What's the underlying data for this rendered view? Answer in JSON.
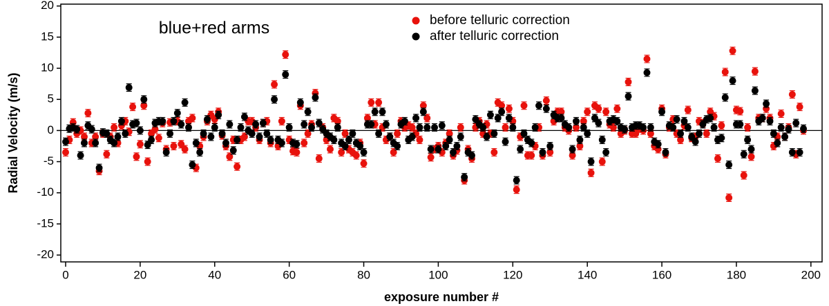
{
  "chart_data": {
    "type": "scatter",
    "annotation": "blue+red arms",
    "xlabel": "exposure number #",
    "ylabel": "Radial Velocity (m/s)",
    "xlim": [
      -1.3,
      203
    ],
    "ylim": [
      -21.1,
      20.3
    ],
    "xticks": [
      0,
      20,
      40,
      60,
      80,
      100,
      120,
      140,
      160,
      180,
      200
    ],
    "yticks": [
      -20,
      -15,
      -10,
      -5,
      0,
      5,
      10,
      15,
      20
    ],
    "hline": 0,
    "x": [
      0,
      1,
      2,
      3,
      4,
      5,
      6,
      7,
      8,
      9,
      10,
      11,
      12,
      13,
      14,
      15,
      16,
      17,
      18,
      19,
      20,
      21,
      22,
      23,
      24,
      25,
      26,
      27,
      28,
      29,
      30,
      31,
      32,
      33,
      34,
      35,
      36,
      37,
      38,
      39,
      40,
      41,
      42,
      43,
      44,
      45,
      46,
      47,
      48,
      49,
      50,
      51,
      52,
      53,
      54,
      55,
      56,
      57,
      58,
      59,
      60,
      61,
      62,
      63,
      64,
      65,
      66,
      67,
      68,
      69,
      70,
      71,
      72,
      73,
      74,
      75,
      76,
      77,
      78,
      79,
      80,
      81,
      82,
      83,
      84,
      85,
      86,
      87,
      88,
      89,
      90,
      91,
      92,
      93,
      94,
      95,
      96,
      97,
      98,
      99,
      100,
      101,
      102,
      103,
      104,
      105,
      106,
      107,
      108,
      109,
      110,
      111,
      112,
      113,
      114,
      115,
      116,
      117,
      118,
      119,
      120,
      121,
      122,
      123,
      124,
      125,
      126,
      127,
      128,
      129,
      130,
      131,
      132,
      133,
      134,
      135,
      136,
      137,
      138,
      139,
      140,
      141,
      142,
      143,
      144,
      145,
      146,
      147,
      148,
      149,
      150,
      151,
      152,
      153,
      154,
      155,
      156,
      157,
      158,
      159,
      160,
      161,
      162,
      163,
      164,
      165,
      166,
      167,
      168,
      169,
      170,
      171,
      172,
      173,
      174,
      175,
      176,
      177,
      178,
      179,
      180,
      181,
      182,
      183,
      184,
      185,
      186,
      187,
      188,
      189,
      190,
      191,
      192,
      193,
      194,
      195,
      196,
      197,
      198
    ],
    "series": [
      {
        "name": "before telluric correction",
        "color": "#e8120c",
        "error": 0.6,
        "values": [
          -3.5,
          -1.5,
          1.3,
          -0.5,
          0,
          -1,
          2.8,
          -2,
          -1,
          -6.5,
          -0.5,
          -3.8,
          -1,
          0.5,
          -2,
          0.8,
          1.5,
          -0.2,
          3.8,
          -4.2,
          -2.2,
          4,
          -5,
          -0.5,
          0.2,
          -1.2,
          1.2,
          -3,
          1.3,
          -2.5,
          1.5,
          -2.2,
          -3,
          1.5,
          2,
          -6,
          -2.5,
          -1,
          1.5,
          2.5,
          1.8,
          3,
          -0.8,
          -2.5,
          -4.2,
          -1.5,
          -5.8,
          -1.5,
          -1,
          1.5,
          1.5,
          0.5,
          -1.5,
          1.2,
          1.5,
          -2,
          7.4,
          -2.5,
          1.5,
          12.2,
          -1.5,
          -3.3,
          -3.5,
          4,
          -2,
          -0.5,
          1,
          6,
          -4.5,
          0.5,
          -1.5,
          -3,
          2,
          1.5,
          -3.5,
          -0.5,
          -3,
          -3.5,
          -4,
          -2,
          -5.3,
          2,
          4.5,
          1,
          4.5,
          0.5,
          -1.5,
          -1,
          -3.5,
          -0.5,
          1.5,
          0.5,
          0.8,
          0.5,
          -0.5,
          -1.5,
          4,
          2,
          -4.3,
          -3,
          -2.5,
          -3.5,
          -2,
          -0.5,
          -4,
          -3.2,
          0.5,
          -8,
          -3,
          -4.5,
          0.5,
          1.5,
          -0.5,
          1,
          -0.5,
          -3.5,
          4.5,
          4,
          0.5,
          3.5,
          1.5,
          -9.5,
          -1,
          4,
          -4,
          -4,
          -2.5,
          0.5,
          -4,
          4.8,
          -3.5,
          1.5,
          3,
          3,
          0.5,
          0,
          -4,
          0.5,
          -2.5,
          1.5,
          3,
          -6.8,
          4,
          3.5,
          -5,
          3,
          1,
          0.5,
          3.5,
          -0.5,
          0,
          7.8,
          -0.5,
          -0.5,
          0.3,
          0,
          11.5,
          -0.5,
          -2.5,
          -3,
          3.5,
          -3.8,
          0.5,
          1.8,
          -0.5,
          -1.5,
          0.8,
          3.3,
          -1.2,
          -1,
          1.5,
          1.2,
          -0.5,
          3,
          2.3,
          -4.5,
          0.8,
          9.4,
          -10.8,
          12.8,
          3.3,
          3.1,
          -7.2,
          0.5,
          -4.2,
          9.5,
          2,
          2,
          3.5,
          2,
          -2.5,
          -1,
          2.7,
          -1,
          0.5,
          5.8,
          -3.8,
          3.8,
          0
        ]
      },
      {
        "name": "after telluric correction",
        "color": "#000000",
        "error": 0.6,
        "values": [
          -1.8,
          0.3,
          0.5,
          0.2,
          -4,
          -2,
          0.8,
          0.2,
          -2,
          -6,
          -0.3,
          -0.5,
          -1.5,
          -2,
          -1,
          1.5,
          -0.5,
          6.9,
          1,
          1.2,
          0,
          5,
          -2.3,
          -1.5,
          1.2,
          1.5,
          1.5,
          -3.5,
          -0.5,
          1.5,
          2.8,
          1,
          4.5,
          0.5,
          -5.5,
          -2,
          -3.5,
          -0.5,
          1.8,
          -1,
          0.5,
          2.5,
          -0.5,
          -2,
          1,
          -3.2,
          -1.5,
          0.5,
          2.2,
          0,
          -0.5,
          1,
          -1,
          1.2,
          -0.5,
          -1.5,
          5,
          -1.5,
          -2,
          9,
          0.5,
          -2,
          -2.2,
          4.5,
          1,
          3,
          0.5,
          5.3,
          1.2,
          0.2,
          -0.5,
          -1,
          -1.5,
          0.5,
          -2,
          -2.5,
          -1.5,
          -0.5,
          -2,
          -2.5,
          -3.5,
          1,
          1,
          3,
          -0.5,
          3,
          1,
          -1,
          -2,
          -2.5,
          1,
          1.5,
          -1.5,
          -1,
          2,
          0.5,
          3,
          0.5,
          -3,
          0.5,
          -3,
          0.8,
          -2.5,
          -1.5,
          -3.5,
          -2.5,
          -1,
          -7.5,
          -3.5,
          -4,
          1.8,
          1,
          0.5,
          -1,
          2.5,
          -0.5,
          2,
          3,
          -1.8,
          2,
          0.5,
          -8,
          -3,
          -0.5,
          -1.5,
          -2,
          0.5,
          4,
          -3.5,
          3.5,
          -2.5,
          2.5,
          2,
          2,
          1,
          0.5,
          -3,
          1.5,
          -1.5,
          0.5,
          -0.5,
          -5,
          2,
          1.2,
          -1.5,
          -3.5,
          1.5,
          1.8,
          1.5,
          0.5,
          0.2,
          5.5,
          0.5,
          0.8,
          0.8,
          0.5,
          9.3,
          0.5,
          -1.8,
          -2.2,
          3,
          -3.5,
          0.8,
          0.5,
          1.8,
          -0.5,
          1.5,
          0.5,
          -1,
          -1.8,
          -0.5,
          1,
          1.8,
          2,
          0.5,
          -1.5,
          -1.2,
          5.3,
          -5.5,
          8,
          1,
          1,
          -3.8,
          -1.5,
          -3,
          6.4,
          1.5,
          2,
          4.3,
          1.5,
          -0.5,
          -2,
          0.5,
          -1,
          0.2,
          -3.5,
          1.2,
          -3.5,
          0.3
        ]
      }
    ]
  }
}
